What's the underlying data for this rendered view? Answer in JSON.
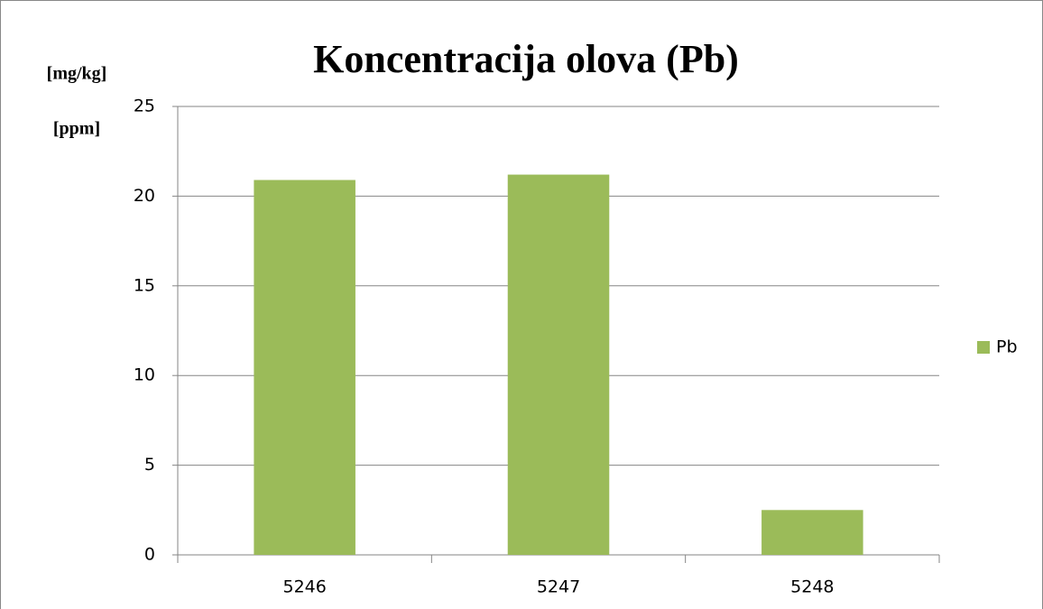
{
  "chart_data": {
    "type": "bar",
    "title": "Koncentracija olova (Pb)",
    "ylabel_lines": [
      "[mg/kg]",
      "[ppm]"
    ],
    "categories": [
      "5246",
      "5247",
      "5248"
    ],
    "series": [
      {
        "name": "Pb",
        "color": "#9bbb59",
        "values": [
          20.9,
          21.2,
          2.5
        ]
      }
    ],
    "ylim": [
      0,
      25
    ],
    "yticks": [
      0,
      5,
      10,
      15,
      20,
      25
    ],
    "grid": true,
    "legend": "right"
  }
}
